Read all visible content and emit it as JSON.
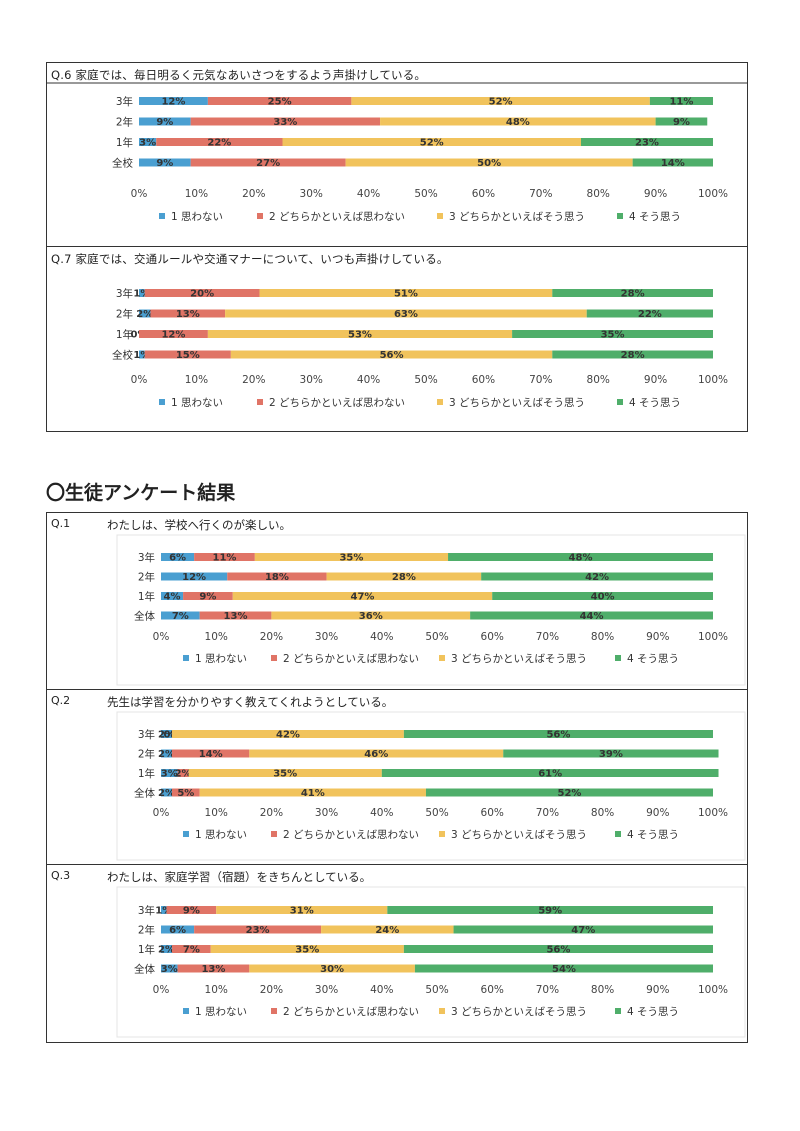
{
  "section_title": "〇生徒アンケート結果",
  "legend": [
    "1 思わない",
    "2 どちらかといえば思わない",
    "3 どちらかといえばそう思う",
    "4 そう思う"
  ],
  "colors": [
    "#4a9fd1",
    "#e07466",
    "#f1c35c",
    "#4fae6a"
  ],
  "ticks": [
    "0%",
    "10%",
    "20%",
    "30%",
    "40%",
    "50%",
    "60%",
    "70%",
    "80%",
    "90%",
    "100%"
  ],
  "charts": [
    {
      "id": "q6",
      "header": "Q.6 家庭では、毎日明るく元気なあいさつをするよう声掛けしている。",
      "chart_data": {
        "type": "bar",
        "stacked": true,
        "orientation": "horizontal",
        "categories": [
          "3年",
          "2年",
          "1年",
          "全校"
        ],
        "series": [
          {
            "name": "1 思わない",
            "values": [
              12,
              9,
              3,
              9
            ]
          },
          {
            "name": "2 どちらかといえば思わない",
            "values": [
              25,
              33,
              22,
              27
            ]
          },
          {
            "name": "3 どちらかといえばそう思う",
            "values": [
              52,
              48,
              52,
              50
            ]
          },
          {
            "name": "4 そう思う",
            "values": [
              11,
              9,
              23,
              14
            ]
          }
        ],
        "xlim": [
          0,
          100
        ]
      }
    },
    {
      "id": "q7",
      "header": "Q.7 家庭では、交通ルールや交通マナーについて、いつも声掛けしている。",
      "chart_data": {
        "type": "bar",
        "stacked": true,
        "orientation": "horizontal",
        "categories": [
          "3年",
          "2年",
          "1年",
          "全校"
        ],
        "series": [
          {
            "name": "1 思わない",
            "values": [
              1,
              2,
              0,
              1
            ]
          },
          {
            "name": "2 どちらかといえば思わない",
            "values": [
              20,
              13,
              12,
              15
            ]
          },
          {
            "name": "3 どちらかといえばそう思う",
            "values": [
              51,
              63,
              53,
              56
            ]
          },
          {
            "name": "4 そう思う",
            "values": [
              28,
              22,
              35,
              28
            ]
          }
        ],
        "xlim": [
          0,
          100
        ]
      }
    },
    {
      "id": "s1",
      "qnum": "Q.1",
      "header": "わたしは、学校へ行くのが楽しい。",
      "chart_data": {
        "type": "bar",
        "stacked": true,
        "orientation": "horizontal",
        "categories": [
          "3年",
          "2年",
          "1年",
          "全体"
        ],
        "series": [
          {
            "name": "1 思わない",
            "values": [
              6,
              12,
              4,
              7
            ]
          },
          {
            "name": "2 どちらかといえば思わない",
            "values": [
              11,
              18,
              9,
              13
            ]
          },
          {
            "name": "3 どちらかといえばそう思う",
            "values": [
              35,
              28,
              47,
              36
            ]
          },
          {
            "name": "4 そう思う",
            "values": [
              48,
              42,
              40,
              44
            ]
          }
        ],
        "xlim": [
          0,
          100
        ]
      }
    },
    {
      "id": "s2",
      "qnum": "Q.2",
      "header": "先生は学習を分かりやすく教えてくれようとしている。",
      "chart_data": {
        "type": "bar",
        "stacked": true,
        "orientation": "horizontal",
        "categories": [
          "3年",
          "2年",
          "1年",
          "全体"
        ],
        "series": [
          {
            "name": "1 思わない",
            "values": [
              2,
              2,
              3,
              2
            ]
          },
          {
            "name": "2 どちらかといえば思わない",
            "values": [
              0,
              14,
              2,
              5
            ]
          },
          {
            "name": "3 どちらかといえばそう思う",
            "values": [
              42,
              46,
              35,
              41
            ]
          },
          {
            "name": "4 そう思う",
            "values": [
              56,
              39,
              61,
              52
            ]
          }
        ],
        "labels": [
          [
            "2%",
            "0%",
            "42%",
            "56%"
          ],
          [
            "2%",
            "14%",
            "46%",
            "39%"
          ],
          [
            "3%",
            "2%",
            "35%",
            "61%"
          ],
          [
            "2%",
            "5%",
            "41%",
            "52%"
          ]
        ],
        "xlim": [
          0,
          100
        ]
      }
    },
    {
      "id": "s3",
      "qnum": "Q.3",
      "header": "わたしは、家庭学習（宿題）をきちんとしている。",
      "chart_data": {
        "type": "bar",
        "stacked": true,
        "orientation": "horizontal",
        "categories": [
          "3年",
          "2年",
          "1年",
          "全体"
        ],
        "series": [
          {
            "name": "1 思わない",
            "values": [
              1,
              6,
              2,
              3
            ]
          },
          {
            "name": "2 どちらかといえば思わない",
            "values": [
              9,
              23,
              7,
              13
            ]
          },
          {
            "name": "3 どちらかといえばそう思う",
            "values": [
              31,
              24,
              35,
              30
            ]
          },
          {
            "name": "4 そう思う",
            "values": [
              59,
              47,
              56,
              54
            ]
          }
        ],
        "xlim": [
          0,
          100
        ]
      }
    }
  ]
}
